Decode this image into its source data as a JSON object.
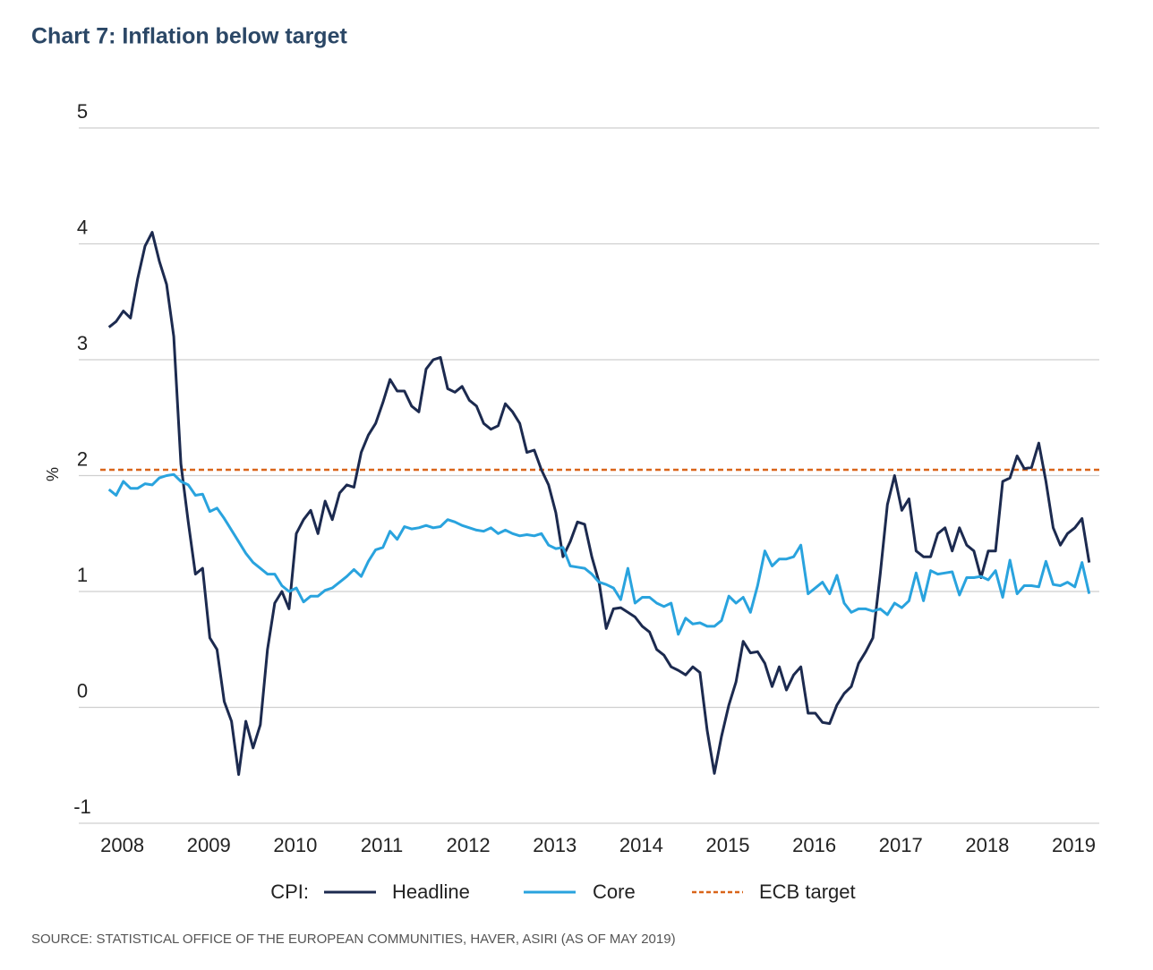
{
  "chart_data": {
    "type": "line",
    "title": "Chart 7: Inflation below target",
    "ylabel": "%",
    "legend_prefix": "CPI:",
    "source": "SOURCE: STATISTICAL OFFICE OF THE EUROPEAN COMMUNITIES, HAVER, ASIRI (AS OF MAY 2019)",
    "xlim": [
      2007.9,
      2019.45
    ],
    "xticks": [
      2008,
      2009,
      2010,
      2011,
      2012,
      2013,
      2014,
      2015,
      2016,
      2017,
      2018,
      2019
    ],
    "ylim": [
      -1,
      5
    ],
    "yticks": [
      -1,
      0,
      1,
      2,
      3,
      4,
      5
    ],
    "grid": true,
    "x": [
      2008,
      2008.083,
      2008.167,
      2008.25,
      2008.333,
      2008.417,
      2008.5,
      2008.583,
      2008.667,
      2008.75,
      2008.833,
      2008.917,
      2009,
      2009.083,
      2009.167,
      2009.25,
      2009.333,
      2009.417,
      2009.5,
      2009.583,
      2009.667,
      2009.75,
      2009.833,
      2009.917,
      2010,
      2010.083,
      2010.167,
      2010.25,
      2010.333,
      2010.417,
      2010.5,
      2010.583,
      2010.667,
      2010.75,
      2010.833,
      2010.917,
      2011,
      2011.083,
      2011.167,
      2011.25,
      2011.333,
      2011.417,
      2011.5,
      2011.583,
      2011.667,
      2011.75,
      2011.833,
      2011.917,
      2012,
      2012.083,
      2012.167,
      2012.25,
      2012.333,
      2012.417,
      2012.5,
      2012.583,
      2012.667,
      2012.75,
      2012.833,
      2012.917,
      2013,
      2013.083,
      2013.167,
      2013.25,
      2013.333,
      2013.417,
      2013.5,
      2013.583,
      2013.667,
      2013.75,
      2013.833,
      2013.917,
      2014,
      2014.083,
      2014.167,
      2014.25,
      2014.333,
      2014.417,
      2014.5,
      2014.583,
      2014.667,
      2014.75,
      2014.833,
      2014.917,
      2015,
      2015.083,
      2015.167,
      2015.25,
      2015.333,
      2015.417,
      2015.5,
      2015.583,
      2015.667,
      2015.75,
      2015.833,
      2015.917,
      2016,
      2016.083,
      2016.167,
      2016.25,
      2016.333,
      2016.417,
      2016.5,
      2016.583,
      2016.667,
      2016.75,
      2016.833,
      2016.917,
      2017,
      2017.083,
      2017.167,
      2017.25,
      2017.333,
      2017.417,
      2017.5,
      2017.583,
      2017.667,
      2017.75,
      2017.833,
      2017.917,
      2018,
      2018.083,
      2018.167,
      2018.25,
      2018.333,
      2018.417,
      2018.5,
      2018.583,
      2018.667,
      2018.75,
      2018.833,
      2018.917,
      2019,
      2019.083,
      2019.167,
      2019.25,
      2019.333
    ],
    "series": [
      {
        "name": "Headline",
        "color": "#1c2a4f",
        "values": [
          3.28,
          3.33,
          3.42,
          3.36,
          3.7,
          3.98,
          4.1,
          3.85,
          3.65,
          3.2,
          2.1,
          1.6,
          1.15,
          1.2,
          0.6,
          0.5,
          0.05,
          -0.12,
          -0.58,
          -0.12,
          -0.35,
          -0.15,
          0.5,
          0.9,
          1.0,
          0.85,
          1.5,
          1.62,
          1.7,
          1.5,
          1.78,
          1.62,
          1.85,
          1.92,
          1.9,
          2.2,
          2.35,
          2.45,
          2.63,
          2.83,
          2.73,
          2.73,
          2.6,
          2.55,
          2.92,
          3.0,
          3.02,
          2.75,
          2.72,
          2.77,
          2.65,
          2.6,
          2.45,
          2.4,
          2.43,
          2.62,
          2.55,
          2.45,
          2.2,
          2.22,
          2.05,
          1.92,
          1.68,
          1.3,
          1.43,
          1.6,
          1.58,
          1.3,
          1.08,
          0.68,
          0.85,
          0.86,
          0.82,
          0.78,
          0.7,
          0.65,
          0.5,
          0.45,
          0.35,
          0.32,
          0.28,
          0.35,
          0.3,
          -0.2,
          -0.57,
          -0.25,
          0.02,
          0.22,
          0.57,
          0.47,
          0.48,
          0.38,
          0.18,
          0.35,
          0.15,
          0.28,
          0.35,
          -0.05,
          -0.05,
          -0.13,
          -0.14,
          0.02,
          0.12,
          0.18,
          0.38,
          0.48,
          0.6,
          1.15,
          1.75,
          2.0,
          1.7,
          1.8,
          1.35,
          1.3,
          1.3,
          1.5,
          1.55,
          1.35,
          1.55,
          1.4,
          1.35,
          1.12,
          1.35,
          1.35,
          1.95,
          1.98,
          2.17,
          2.06,
          2.07,
          2.28,
          1.95,
          1.55,
          1.4,
          1.5,
          1.55,
          1.63,
          1.25
        ]
      },
      {
        "name": "Core",
        "color": "#29a3de",
        "values": [
          1.88,
          1.83,
          1.95,
          1.89,
          1.89,
          1.93,
          1.92,
          1.98,
          2.0,
          2.01,
          1.95,
          1.92,
          1.83,
          1.84,
          1.69,
          1.72,
          1.63,
          1.53,
          1.43,
          1.33,
          1.25,
          1.2,
          1.15,
          1.15,
          1.05,
          1.0,
          1.03,
          0.91,
          0.96,
          0.96,
          1.01,
          1.03,
          1.08,
          1.13,
          1.19,
          1.13,
          1.26,
          1.36,
          1.38,
          1.52,
          1.45,
          1.56,
          1.54,
          1.55,
          1.57,
          1.55,
          1.56,
          1.62,
          1.6,
          1.57,
          1.55,
          1.53,
          1.52,
          1.55,
          1.5,
          1.53,
          1.5,
          1.48,
          1.49,
          1.48,
          1.5,
          1.4,
          1.37,
          1.38,
          1.22,
          1.21,
          1.2,
          1.15,
          1.08,
          1.06,
          1.03,
          0.93,
          1.2,
          0.9,
          0.95,
          0.95,
          0.9,
          0.87,
          0.9,
          0.63,
          0.77,
          0.72,
          0.73,
          0.7,
          0.7,
          0.75,
          0.96,
          0.9,
          0.95,
          0.82,
          1.05,
          1.35,
          1.22,
          1.28,
          1.28,
          1.3,
          1.4,
          0.98,
          1.03,
          1.08,
          0.98,
          1.14,
          0.9,
          0.82,
          0.85,
          0.85,
          0.83,
          0.85,
          0.8,
          0.9,
          0.86,
          0.92,
          1.16,
          0.92,
          1.18,
          1.15,
          1.16,
          1.17,
          0.97,
          1.12,
          1.12,
          1.13,
          1.1,
          1.18,
          0.95,
          1.27,
          0.98,
          1.05,
          1.05,
          1.04,
          1.26,
          1.06,
          1.05,
          1.08,
          1.04,
          1.25,
          0.98
        ]
      }
    ],
    "reference_line": {
      "name": "ECB target",
      "value": 2.05,
      "color": "#d9651a",
      "dashed": true
    }
  }
}
